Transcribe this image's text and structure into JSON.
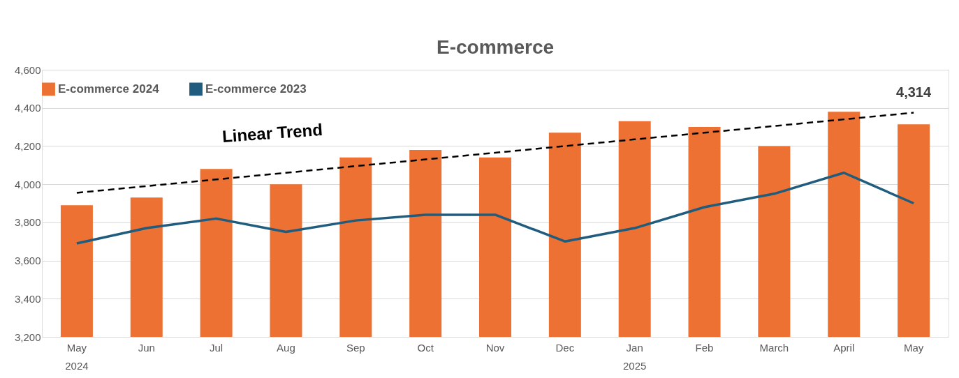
{
  "chart_data": {
    "type": "bar",
    "title": "E-commerce",
    "categories": [
      "May\n2024",
      "Jun",
      "Jul",
      "Aug",
      "Sep",
      "Oct",
      "Nov",
      "Dec",
      "Jan\n2025",
      "Feb",
      "March",
      "April",
      "May"
    ],
    "series": [
      {
        "name": "E-commerce 2024",
        "color": "#ed7132",
        "values": [
          3890,
          3930,
          4080,
          4000,
          4140,
          4180,
          4140,
          4270,
          4330,
          4300,
          4200,
          4380,
          4314
        ],
        "value_labels": [
          null,
          null,
          null,
          null,
          null,
          null,
          null,
          null,
          null,
          null,
          null,
          null,
          "4,314"
        ]
      },
      {
        "name": "E-commerce 2023",
        "type": "line",
        "color": "#1f5c7e",
        "values": [
          3690,
          3770,
          3820,
          3750,
          3810,
          3840,
          3840,
          3700,
          3770,
          3880,
          3950,
          4060,
          3900
        ]
      },
      {
        "type": "line",
        "color": "#000000",
        "line_style": "dashed",
        "values": [
          3955,
          3990,
          4025,
          4060,
          4095,
          4130,
          4165,
          4200,
          4235,
          4270,
          4305,
          4340,
          4375
        ]
      }
    ],
    "ylim": [
      3200,
      4600
    ],
    "yticks": [
      {
        "value": 3200,
        "label": "3,200"
      },
      {
        "value": 3400,
        "label": "3,400"
      },
      {
        "value": 3600,
        "label": "3,600"
      },
      {
        "value": 3800,
        "label": "3,800"
      },
      {
        "value": 4000,
        "label": "4,000"
      },
      {
        "value": 4200,
        "label": "4,200"
      },
      {
        "value": 4400,
        "label": "4,400"
      },
      {
        "value": 4600,
        "label": "4,600"
      }
    ],
    "grid": "y",
    "legend": "top",
    "annotations": [
      "Linear Trend"
    ]
  }
}
